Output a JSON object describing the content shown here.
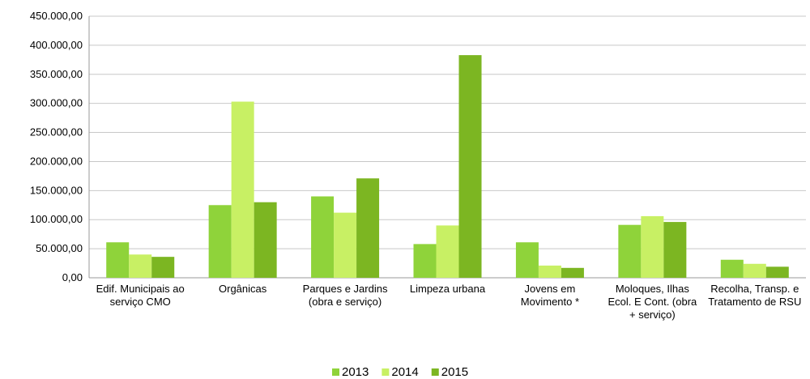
{
  "chart_data": {
    "type": "bar",
    "categories": [
      "Edif. Municipais ao serviço CMO",
      "Orgânicas",
      "Parques e Jardins (obra e serviço)",
      "Limpeza urbana",
      "Jovens em Movimento *",
      "Moloques, Ilhas Ecol. E Cont. (obra + serviço)",
      "Recolha, Transp. e Tratamento de RSU"
    ],
    "series": [
      {
        "name": "2013",
        "color": "#8fd33a",
        "values": [
          61000,
          125000,
          140000,
          58000,
          61000,
          91000,
          31000
        ]
      },
      {
        "name": "2014",
        "color": "#c8f064",
        "values": [
          40000,
          303000,
          112000,
          90000,
          21000,
          106000,
          24000
        ]
      },
      {
        "name": "2015",
        "color": "#7cb622",
        "values": [
          36000,
          130000,
          171000,
          383000,
          17000,
          96000,
          19000
        ]
      }
    ],
    "ylim": [
      0,
      450000
    ],
    "yticks": [
      {
        "value": 0,
        "label": "0,00"
      },
      {
        "value": 50000,
        "label": "50.000,00"
      },
      {
        "value": 100000,
        "label": "100.000,00"
      },
      {
        "value": 150000,
        "label": "150.000,00"
      },
      {
        "value": 200000,
        "label": "200.000,00"
      },
      {
        "value": 250000,
        "label": "250.000,00"
      },
      {
        "value": 300000,
        "label": "300.000,00"
      },
      {
        "value": 350000,
        "label": "350.000,00"
      },
      {
        "value": 400000,
        "label": "400.000,00"
      },
      {
        "value": 450000,
        "label": "450.000,00"
      }
    ],
    "grid": true,
    "legend": "bottom"
  }
}
